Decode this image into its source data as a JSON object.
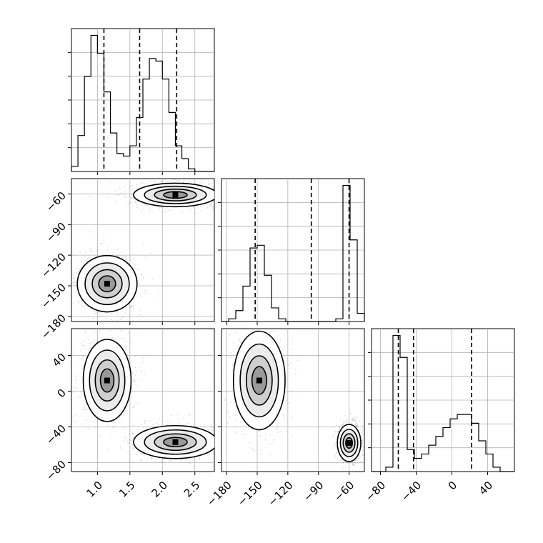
{
  "chart_data": [
    {
      "panel": "hist-param1",
      "type": "bar",
      "x_range": [
        0.6,
        2.8
      ],
      "bin_edges": [
        0.6,
        0.7,
        0.8,
        0.9,
        1.0,
        1.1,
        1.2,
        1.3,
        1.4,
        1.5,
        1.6,
        1.7,
        1.8,
        1.9,
        2.0,
        2.1,
        2.2,
        2.3,
        2.4,
        2.5,
        2.6,
        2.7,
        2.8
      ],
      "counts": [
        0.2,
        1.4,
        3.7,
        5.3,
        4.6,
        3.1,
        1.5,
        0.7,
        0.6,
        1.0,
        2.1,
        3.6,
        4.4,
        4.3,
        3.6,
        2.3,
        1.0,
        0.5,
        0.1,
        0,
        0,
        0
      ],
      "quantile_lines": [
        1.1,
        1.65,
        2.22
      ],
      "x_ticks": [
        1.0,
        1.5,
        2.0,
        2.5
      ]
    },
    {
      "panel": "hist-param2",
      "type": "bar",
      "x_range": [
        -185,
        -45
      ],
      "bin_edges": [
        -185,
        -178,
        -171,
        -164,
        -157,
        -150,
        -143,
        -136,
        -129,
        -122,
        -115,
        -108,
        -101,
        -94,
        -87,
        -80,
        -73,
        -66,
        -59,
        -52,
        -45
      ],
      "counts": [
        0,
        0.1,
        0.4,
        1.3,
        2.7,
        2.8,
        1.7,
        0.5,
        0.1,
        0,
        0,
        0,
        0,
        0,
        0,
        0,
        0.1,
        5.0,
        3.0,
        0.3
      ],
      "quantile_lines": [
        -152,
        -97,
        -60
      ],
      "x_ticks": [
        -180,
        -150,
        -120,
        -90,
        -60
      ]
    },
    {
      "panel": "hist-param3",
      "type": "bar",
      "x_range": [
        -90,
        70
      ],
      "bin_edges": [
        -90,
        -82,
        -74,
        -66,
        -58,
        -50,
        -42,
        -34,
        -26,
        -18,
        -10,
        -2,
        6,
        14,
        22,
        30,
        38,
        46,
        54,
        62,
        70
      ],
      "counts": [
        0,
        0,
        0.1,
        3.1,
        2.6,
        0.5,
        0.3,
        0.4,
        0.6,
        0.8,
        1.0,
        1.2,
        1.3,
        1.3,
        1.1,
        0.7,
        0.4,
        0.1,
        0,
        0
      ],
      "quantile_lines": [
        -60,
        -43,
        22
      ],
      "x_ticks": [
        -80,
        -40,
        0,
        40
      ]
    },
    {
      "panel": "corner-param1-vs-param2",
      "type": "scatter",
      "x_range": [
        0.6,
        2.8
      ],
      "y_range": [
        -185,
        -45
      ],
      "clusters": [
        {
          "cx": 1.15,
          "cy": -148,
          "sx": 0.2,
          "sy": 12
        },
        {
          "cx": 2.2,
          "cy": -61,
          "sx": 0.28,
          "sy": 5
        }
      ],
      "y_ticks": [
        -180,
        -150,
        -120,
        -90,
        -60
      ]
    },
    {
      "panel": "corner-param1-vs-param3",
      "type": "scatter",
      "x_range": [
        0.6,
        2.8
      ],
      "y_range": [
        -90,
        70
      ],
      "clusters": [
        {
          "cx": 1.15,
          "cy": 12,
          "sx": 0.16,
          "sy": 20
        },
        {
          "cx": 2.2,
          "cy": -57,
          "sx": 0.28,
          "sy": 8
        }
      ],
      "x_ticks": [
        1.0,
        1.5,
        2.0,
        2.5
      ],
      "y_ticks": [
        -80,
        -40,
        0,
        40
      ]
    },
    {
      "panel": "corner-param2-vs-param3",
      "type": "scatter",
      "x_range": [
        -185,
        -45
      ],
      "y_range": [
        -90,
        70
      ],
      "clusters": [
        {
          "cx": -148,
          "cy": 12,
          "sx": 11,
          "sy": 24
        },
        {
          "cx": -60,
          "cy": -58,
          "sx": 5,
          "sy": 9
        }
      ],
      "x_ticks": [
        -180,
        -150,
        -120,
        -90,
        -60
      ]
    }
  ],
  "tick_labels": {
    "p1_x": [
      "1.0",
      "1.5",
      "2.0",
      "2.5"
    ],
    "p2_x": [
      "−180",
      "−150",
      "−120",
      "−90",
      "−60"
    ],
    "p3_x": [
      "−80",
      "−40",
      "0",
      "40"
    ],
    "p2_y": [
      "−180",
      "−150",
      "−120",
      "−90",
      "−60"
    ],
    "p3_y": [
      "−80",
      "−40",
      "0",
      "40"
    ]
  },
  "colors": {
    "ink": "#000000",
    "grid": "#b0b0b0",
    "scatter": "#808080"
  },
  "grid": true
}
